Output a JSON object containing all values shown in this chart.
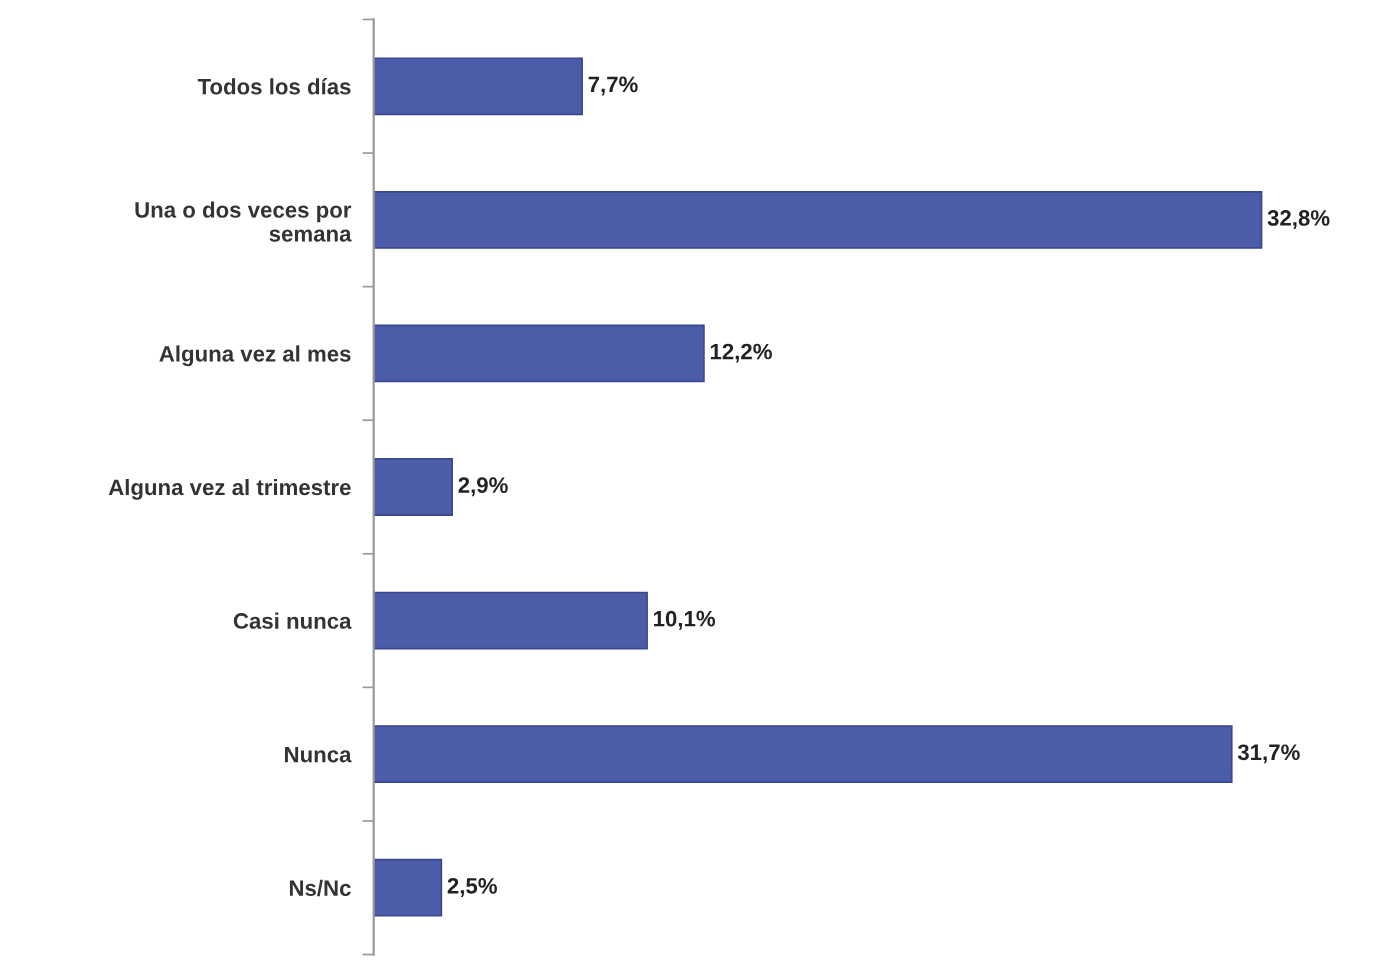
{
  "chart_data": {
    "type": "bar",
    "orientation": "horizontal",
    "categories": [
      "Todos los días",
      "Una o dos veces por\nsemana",
      "Alguna vez al mes",
      "Alguna vez al trimestre",
      "Casi nunca",
      "Nunca",
      "Ns/Nc"
    ],
    "values": [
      7.7,
      32.8,
      12.2,
      2.9,
      10.1,
      31.7,
      2.5
    ],
    "value_labels": [
      "7,7%",
      "32,8%",
      "12,2%",
      "2,9%",
      "10,1%",
      "31,7%",
      "2,5%"
    ],
    "color": "#4c5ca8",
    "grid": false,
    "legend": false
  }
}
